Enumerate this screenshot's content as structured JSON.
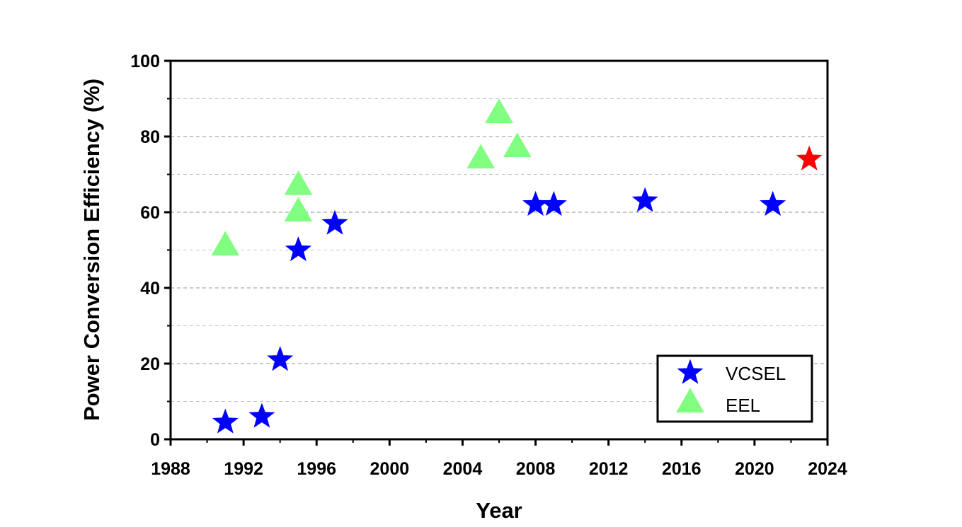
{
  "chart_data": {
    "type": "scatter",
    "title": "",
    "xlabel": "Year",
    "ylabel": "Power Conversion Efficiency (%)",
    "xlim": [
      1988,
      2024
    ],
    "ylim": [
      0,
      100
    ],
    "x_ticks": [
      "1988",
      "1992",
      "1996",
      "2000",
      "2004",
      "2008",
      "2012",
      "2016",
      "2020",
      "2024"
    ],
    "y_ticks": [
      "0",
      "20",
      "40",
      "60",
      "80",
      "100"
    ],
    "grid": "horizontal dashed",
    "legend_position": "bottom-right",
    "series": [
      {
        "name": "VCSEL",
        "marker": "star",
        "color": "#0000ff",
        "points": [
          {
            "x": 1991,
            "y": 4.5
          },
          {
            "x": 1993,
            "y": 6
          },
          {
            "x": 1994,
            "y": 21
          },
          {
            "x": 1995,
            "y": 50
          },
          {
            "x": 1997,
            "y": 57
          },
          {
            "x": 2008,
            "y": 62
          },
          {
            "x": 2009,
            "y": 62
          },
          {
            "x": 2014,
            "y": 63
          },
          {
            "x": 2021,
            "y": 62
          }
        ]
      },
      {
        "name": "EEL",
        "marker": "triangle",
        "color": "#80ff80",
        "points": [
          {
            "x": 1991,
            "y": 51
          },
          {
            "x": 1995,
            "y": 60
          },
          {
            "x": 1995,
            "y": 67
          },
          {
            "x": 2005,
            "y": 74
          },
          {
            "x": 2006,
            "y": 86
          },
          {
            "x": 2007,
            "y": 77
          }
        ]
      }
    ],
    "highlight": {
      "marker": "star",
      "color": "#ff0000",
      "points": [
        {
          "x": 2023,
          "y": 74
        }
      ]
    }
  }
}
